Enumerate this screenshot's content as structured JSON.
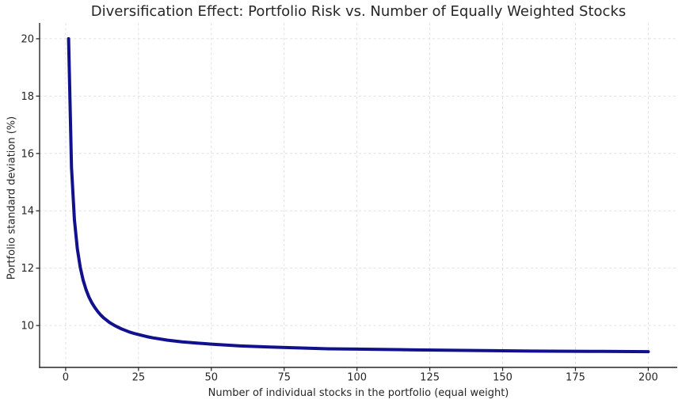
{
  "chart_data": {
    "type": "line",
    "title": "Diversification Effect: Portfolio Risk vs. Number of Equally Weighted Stocks",
    "xlabel": "Number of individual stocks in the portfolio (equal weight)",
    "ylabel": "Portfolio standard deviation (%)",
    "xlim": [
      -8.95,
      209.95
    ],
    "ylim": [
      8.54,
      20.55
    ],
    "xticks": [
      0,
      25,
      50,
      75,
      100,
      125,
      150,
      175,
      200
    ],
    "yticks": [
      10,
      12,
      14,
      16,
      18,
      20
    ],
    "grid": true,
    "grid_style": "dashed",
    "legend_position": "none",
    "series": [
      {
        "name": "portfolio-standard-deviation",
        "color": "#11118e",
        "line_width": 4,
        "x": [
          1,
          2,
          3,
          4,
          5,
          6,
          7,
          8,
          9,
          10,
          11,
          12,
          13,
          14,
          15,
          16,
          17,
          18,
          19,
          20,
          22,
          24,
          26,
          28,
          30,
          35,
          40,
          45,
          50,
          60,
          70,
          80,
          90,
          100,
          120,
          140,
          160,
          180,
          200
        ],
        "y": [
          20.0,
          15.51,
          13.69,
          12.68,
          12.03,
          11.58,
          11.25,
          10.99,
          10.79,
          10.63,
          10.49,
          10.37,
          10.27,
          10.19,
          10.11,
          10.05,
          9.99,
          9.94,
          9.89,
          9.85,
          9.77,
          9.71,
          9.66,
          9.61,
          9.57,
          9.49,
          9.43,
          9.39,
          9.35,
          9.29,
          9.25,
          9.22,
          9.19,
          9.18,
          9.15,
          9.13,
          9.11,
          9.1,
          9.09
        ]
      }
    ]
  },
  "colors": {
    "background": "#ffffff",
    "grid": "#e0e0e0",
    "axis": "#262626",
    "text": "#262626",
    "line": "#11118e"
  }
}
